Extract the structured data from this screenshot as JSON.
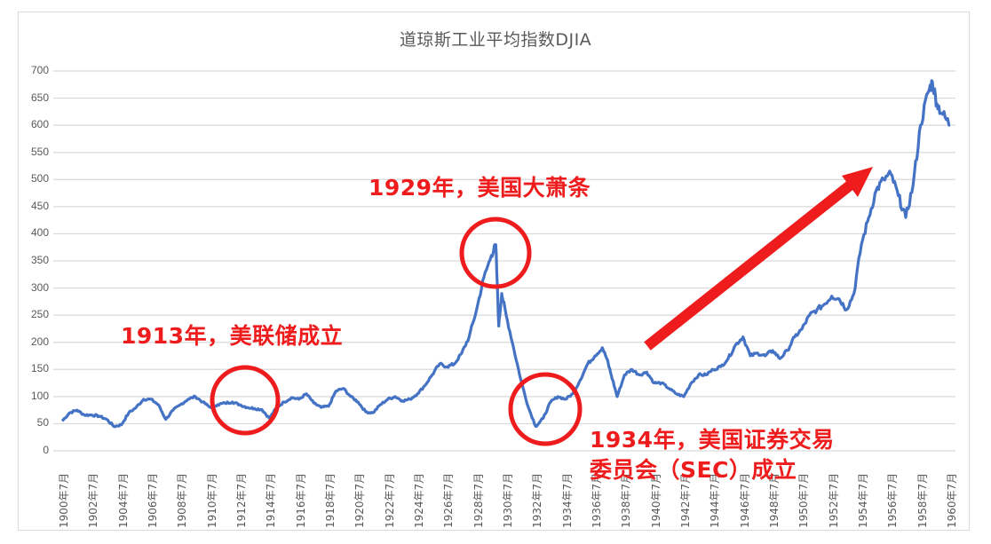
{
  "chart_data": {
    "type": "line",
    "title": "道琼斯工业平均指数DJIA",
    "xlabel": "",
    "ylabel": "",
    "ylim": [
      0,
      700
    ],
    "yticks": [
      0,
      50,
      100,
      150,
      200,
      250,
      300,
      350,
      400,
      450,
      500,
      550,
      600,
      650,
      700
    ],
    "grid": "horizontal",
    "legend": "none",
    "x_tick_labels": [
      "1900年7月",
      "1902年7月",
      "1904年7月",
      "1906年7月",
      "1908年7月",
      "1910年7月",
      "1912年7月",
      "1914年7月",
      "1916年7月",
      "1918年7月",
      "1920年7月",
      "1922年7月",
      "1924年7月",
      "1926年7月",
      "1928年7月",
      "1930年7月",
      "1932年7月",
      "1934年7月",
      "1936年7月",
      "1938年7月",
      "1940年7月",
      "1942年7月",
      "1944年7月",
      "1946年7月",
      "1948年7月",
      "1950年7月",
      "1952年7月",
      "1954年7月",
      "1956年7月",
      "1958年7月",
      "1960年7月"
    ],
    "series": [
      {
        "name": "DJIA",
        "color": "#4472c4",
        "x": [
          1900.5,
          1901.0,
          1901.5,
          1902.0,
          1902.5,
          1903.0,
          1903.5,
          1904.0,
          1904.5,
          1905.0,
          1905.5,
          1906.0,
          1906.5,
          1907.0,
          1907.5,
          1908.0,
          1908.5,
          1909.0,
          1909.5,
          1910.0,
          1910.5,
          1911.0,
          1911.5,
          1912.0,
          1912.5,
          1913.0,
          1913.5,
          1914.0,
          1914.5,
          1915.0,
          1915.5,
          1916.0,
          1916.5,
          1917.0,
          1917.5,
          1918.0,
          1918.5,
          1919.0,
          1919.5,
          1920.0,
          1920.5,
          1921.0,
          1921.5,
          1922.0,
          1922.5,
          1923.0,
          1923.5,
          1924.0,
          1924.5,
          1925.0,
          1925.5,
          1926.0,
          1926.5,
          1927.0,
          1927.5,
          1928.0,
          1928.5,
          1929.0,
          1929.5,
          1929.8,
          1930.0,
          1930.2,
          1930.5,
          1931.0,
          1931.5,
          1932.0,
          1932.5,
          1933.0,
          1933.5,
          1934.0,
          1934.5,
          1935.0,
          1935.5,
          1936.0,
          1936.5,
          1937.0,
          1937.3,
          1937.6,
          1938.0,
          1938.5,
          1939.0,
          1939.5,
          1940.0,
          1940.5,
          1941.0,
          1941.5,
          1942.0,
          1942.5,
          1943.0,
          1943.5,
          1944.0,
          1944.5,
          1945.0,
          1945.5,
          1946.0,
          1946.5,
          1947.0,
          1947.5,
          1948.0,
          1948.5,
          1949.0,
          1949.5,
          1950.0,
          1950.5,
          1951.0,
          1951.5,
          1952.0,
          1952.5,
          1953.0,
          1953.5,
          1954.0,
          1954.5,
          1955.0,
          1955.5,
          1956.0,
          1956.5,
          1957.0,
          1957.5,
          1958.0,
          1958.5,
          1959.0,
          1959.3,
          1959.6,
          1960.0,
          1960.5
        ],
        "values": [
          55,
          70,
          75,
          66,
          66,
          64,
          58,
          45,
          48,
          70,
          80,
          95,
          95,
          85,
          58,
          75,
          85,
          95,
          100,
          90,
          80,
          85,
          88,
          90,
          85,
          80,
          78,
          76,
          60,
          80,
          90,
          98,
          95,
          105,
          88,
          80,
          82,
          110,
          115,
          100,
          90,
          72,
          70,
          85,
          95,
          100,
          92,
          95,
          105,
          120,
          140,
          160,
          155,
          160,
          180,
          210,
          260,
          320,
          360,
          380,
          230,
          290,
          250,
          190,
          130,
          80,
          45,
          60,
          90,
          100,
          95,
          105,
          130,
          160,
          175,
          190,
          170,
          140,
          100,
          140,
          150,
          140,
          145,
          125,
          125,
          115,
          105,
          100,
          125,
          140,
          140,
          150,
          155,
          170,
          195,
          210,
          175,
          180,
          175,
          185,
          170,
          185,
          210,
          225,
          250,
          260,
          270,
          285,
          280,
          260,
          290,
          380,
          430,
          480,
          500,
          510,
          470,
          430,
          490,
          600,
          660,
          680,
          640,
          620,
          600
        ]
      }
    ]
  },
  "annotations": {
    "fed": "1913年，美联储成立",
    "depression": "1929年，美国大萧条",
    "sec_line1": "1934年，美国证券交易",
    "sec_line2": "委员会（SEC）成立",
    "highlight_color": "#ee1c1c"
  }
}
